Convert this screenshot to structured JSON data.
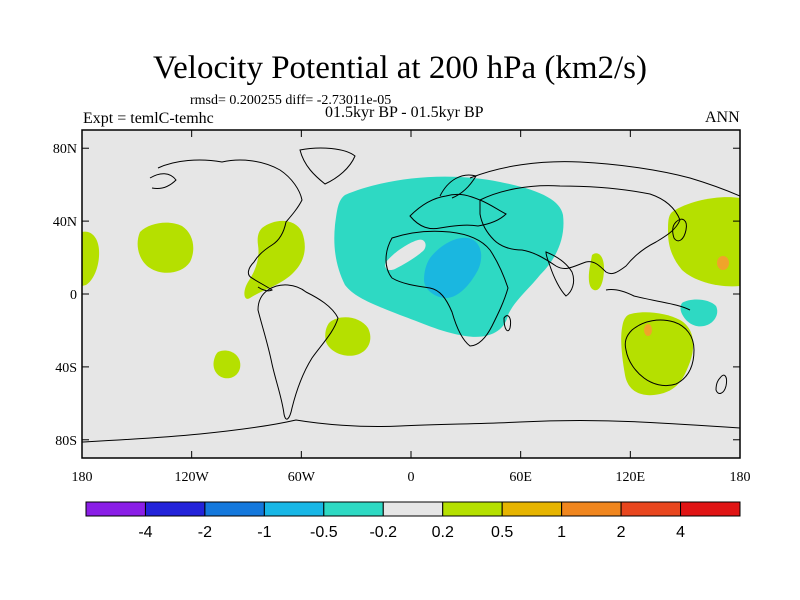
{
  "title": "Velocity Potential at 200 hPa (km2/s)",
  "stats": "rmsd= 0.200255 diff= -2.73011e-05",
  "experiment": "Expt = temlC-temhc",
  "period": "01.5kyr BP - 01.5kyr BP",
  "season": "ANN",
  "map": {
    "projection": "cylindrical-equidistant",
    "lon_range": [
      -180,
      180
    ],
    "lat_range": [
      -90,
      90
    ],
    "background_color": "#e6e6e6",
    "lat_ticks": [
      {
        "value": 80,
        "label": "80N"
      },
      {
        "value": 40,
        "label": "40N"
      },
      {
        "value": 0,
        "label": "0"
      },
      {
        "value": -40,
        "label": "40S"
      },
      {
        "value": -80,
        "label": "80S"
      }
    ],
    "lon_ticks": [
      {
        "value": -180,
        "label": "180"
      },
      {
        "value": -120,
        "label": "120W"
      },
      {
        "value": -60,
        "label": "60W"
      },
      {
        "value": 0,
        "label": "0"
      },
      {
        "value": 60,
        "label": "60E"
      },
      {
        "value": 120,
        "label": "120E"
      },
      {
        "value": 180,
        "label": "180"
      }
    ],
    "regions": [
      {
        "name": "negative-region-eurasia-africa",
        "level": "-0.5 to -0.2",
        "color": "#2ed9c3"
      },
      {
        "name": "negative-core-north-africa",
        "level": "-1 to -0.5",
        "color": "#1ab7e0"
      },
      {
        "name": "positive-region-central-pacific",
        "level": "0.2 to 0.5",
        "color": "#b5e000"
      },
      {
        "name": "positive-region-caribbean",
        "level": "0.2 to 0.5",
        "color": "#b5e000"
      },
      {
        "name": "positive-region-south-atlantic",
        "level": "0.2 to 0.5",
        "color": "#b5e000"
      },
      {
        "name": "positive-region-australia",
        "level": "0.2 to 0.5",
        "color": "#b5e000"
      },
      {
        "name": "positive-region-northwest-pacific",
        "level": "0.2 to 0.5",
        "color": "#b5e000"
      },
      {
        "name": "positive-core-northwest-pacific",
        "level": "0.5 to 1",
        "color": "#f0a32a"
      },
      {
        "name": "positive-core-australia",
        "level": "0.5 to 1",
        "color": "#f0a32a"
      },
      {
        "name": "negative-region-indonesia",
        "level": "-0.5 to -0.2",
        "color": "#2ed9c3"
      }
    ]
  },
  "colorbar": {
    "colors": [
      "#8a1ee6",
      "#2323d9",
      "#1478dc",
      "#18b7e6",
      "#2ed9c3",
      "#e6e6e6",
      "#b5e000",
      "#e6b400",
      "#f0861e",
      "#e8461e",
      "#e01414"
    ],
    "labels": [
      "-4",
      "-2",
      "-1",
      "-0.5",
      "-0.2",
      "0.2",
      "0.5",
      "1",
      "2",
      "4"
    ]
  }
}
